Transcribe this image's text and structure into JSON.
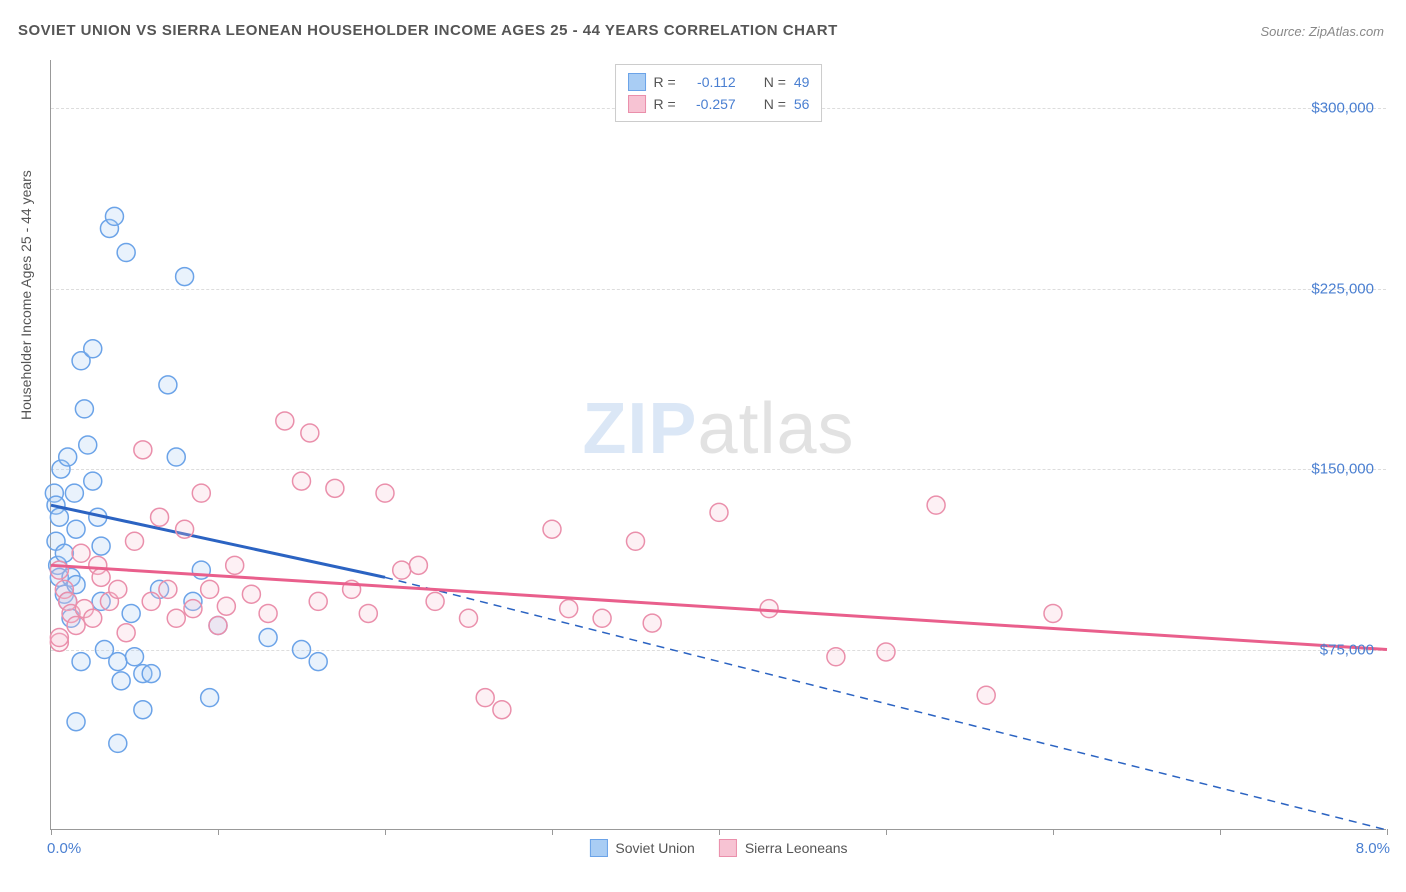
{
  "title": "SOVIET UNION VS SIERRA LEONEAN HOUSEHOLDER INCOME AGES 25 - 44 YEARS CORRELATION CHART",
  "source": "Source: ZipAtlas.com",
  "watermark_a": "ZIP",
  "watermark_b": "atlas",
  "ylabel": "Householder Income Ages 25 - 44 years",
  "chart": {
    "type": "scatter",
    "xlim": [
      0,
      8
    ],
    "ylim": [
      0,
      320000
    ],
    "xticks": [
      0,
      1,
      2,
      3,
      4,
      5,
      6,
      7,
      8
    ],
    "xticklabels_shown": {
      "0": "0.0%",
      "8": "8.0%"
    },
    "yticks": [
      75000,
      150000,
      225000,
      300000
    ],
    "yticklabels": [
      "$75,000",
      "$150,000",
      "$225,000",
      "$300,000"
    ],
    "grid_color": "#dddddd",
    "axis_color": "#999999",
    "background_color": "#ffffff",
    "marker_radius": 9,
    "marker_stroke_width": 1.5,
    "marker_fill_opacity": 0.25,
    "series": [
      {
        "name": "Soviet Union",
        "color_stroke": "#6ba3e8",
        "color_fill": "#a9cdf4",
        "trend_color": "#2b63c2",
        "trend_width": 3,
        "R": "-0.112",
        "N": "49",
        "trend_solid": {
          "x1": 0,
          "y1": 135000,
          "x2": 2.0,
          "y2": 105000
        },
        "trend_dash": {
          "x1": 2.0,
          "y1": 105000,
          "x2": 8.0,
          "y2": 0
        },
        "points": [
          [
            0.02,
            140000
          ],
          [
            0.03,
            135000
          ],
          [
            0.03,
            120000
          ],
          [
            0.04,
            110000
          ],
          [
            0.05,
            105000
          ],
          [
            0.05,
            130000
          ],
          [
            0.06,
            150000
          ],
          [
            0.08,
            115000
          ],
          [
            0.08,
            98000
          ],
          [
            0.1,
            155000
          ],
          [
            0.1,
            95000
          ],
          [
            0.12,
            105000
          ],
          [
            0.12,
            88000
          ],
          [
            0.14,
            140000
          ],
          [
            0.15,
            125000
          ],
          [
            0.15,
            102000
          ],
          [
            0.18,
            195000
          ],
          [
            0.18,
            70000
          ],
          [
            0.2,
            175000
          ],
          [
            0.22,
            160000
          ],
          [
            0.25,
            145000
          ],
          [
            0.28,
            130000
          ],
          [
            0.3,
            118000
          ],
          [
            0.3,
            95000
          ],
          [
            0.32,
            75000
          ],
          [
            0.35,
            250000
          ],
          [
            0.38,
            255000
          ],
          [
            0.4,
            70000
          ],
          [
            0.42,
            62000
          ],
          [
            0.45,
            240000
          ],
          [
            0.48,
            90000
          ],
          [
            0.5,
            72000
          ],
          [
            0.55,
            65000
          ],
          [
            0.6,
            65000
          ],
          [
            0.65,
            100000
          ],
          [
            0.7,
            185000
          ],
          [
            0.75,
            155000
          ],
          [
            0.8,
            230000
          ],
          [
            0.85,
            95000
          ],
          [
            0.9,
            108000
          ],
          [
            0.95,
            55000
          ],
          [
            0.4,
            36000
          ],
          [
            0.15,
            45000
          ],
          [
            0.55,
            50000
          ],
          [
            0.25,
            200000
          ],
          [
            1.0,
            85000
          ],
          [
            1.3,
            80000
          ],
          [
            1.5,
            75000
          ],
          [
            1.6,
            70000
          ]
        ]
      },
      {
        "name": "Sierra Leoneans",
        "color_stroke": "#ea8fab",
        "color_fill": "#f7c3d3",
        "trend_color": "#e95f8c",
        "trend_width": 3,
        "R": "-0.257",
        "N": "56",
        "trend_solid": {
          "x1": 0,
          "y1": 110000,
          "x2": 8.0,
          "y2": 75000
        },
        "trend_dash": null,
        "points": [
          [
            0.05,
            108000
          ],
          [
            0.08,
            100000
          ],
          [
            0.1,
            95000
          ],
          [
            0.12,
            90000
          ],
          [
            0.15,
            85000
          ],
          [
            0.18,
            115000
          ],
          [
            0.2,
            92000
          ],
          [
            0.25,
            88000
          ],
          [
            0.28,
            110000
          ],
          [
            0.3,
            105000
          ],
          [
            0.35,
            95000
          ],
          [
            0.4,
            100000
          ],
          [
            0.45,
            82000
          ],
          [
            0.5,
            120000
          ],
          [
            0.55,
            158000
          ],
          [
            0.6,
            95000
          ],
          [
            0.65,
            130000
          ],
          [
            0.7,
            100000
          ],
          [
            0.75,
            88000
          ],
          [
            0.8,
            125000
          ],
          [
            0.85,
            92000
          ],
          [
            0.9,
            140000
          ],
          [
            0.95,
            100000
          ],
          [
            1.0,
            85000
          ],
          [
            1.05,
            93000
          ],
          [
            1.1,
            110000
          ],
          [
            1.2,
            98000
          ],
          [
            1.3,
            90000
          ],
          [
            1.4,
            170000
          ],
          [
            1.5,
            145000
          ],
          [
            1.55,
            165000
          ],
          [
            1.6,
            95000
          ],
          [
            1.7,
            142000
          ],
          [
            1.8,
            100000
          ],
          [
            1.9,
            90000
          ],
          [
            2.0,
            140000
          ],
          [
            2.1,
            108000
          ],
          [
            2.2,
            110000
          ],
          [
            2.3,
            95000
          ],
          [
            2.5,
            88000
          ],
          [
            2.6,
            55000
          ],
          [
            2.7,
            50000
          ],
          [
            3.0,
            125000
          ],
          [
            3.1,
            92000
          ],
          [
            3.3,
            88000
          ],
          [
            3.5,
            120000
          ],
          [
            3.6,
            86000
          ],
          [
            4.0,
            132000
          ],
          [
            4.3,
            92000
          ],
          [
            4.7,
            72000
          ],
          [
            5.0,
            74000
          ],
          [
            5.3,
            135000
          ],
          [
            5.6,
            56000
          ],
          [
            6.0,
            90000
          ],
          [
            0.05,
            78000
          ],
          [
            0.05,
            80000
          ]
        ]
      }
    ]
  },
  "legend_top": {
    "rows": [
      {
        "swatch_fill": "#a9cdf4",
        "swatch_border": "#6ba3e8",
        "R_label": "R =",
        "R_val": "-0.112",
        "N_label": "N =",
        "N_val": "49"
      },
      {
        "swatch_fill": "#f7c3d3",
        "swatch_border": "#ea8fab",
        "R_label": "R =",
        "R_val": "-0.257",
        "N_label": "N =",
        "N_val": "56"
      }
    ]
  },
  "legend_bottom": {
    "items": [
      {
        "swatch_fill": "#a9cdf4",
        "swatch_border": "#6ba3e8",
        "label": "Soviet Union"
      },
      {
        "swatch_fill": "#f7c3d3",
        "swatch_border": "#ea8fab",
        "label": "Sierra Leoneans"
      }
    ]
  }
}
